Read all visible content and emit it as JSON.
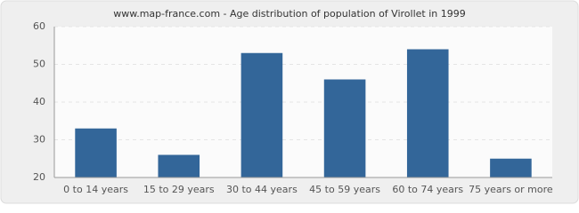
{
  "chart_data": {
    "type": "bar",
    "title": "www.map-france.com - Age distribution of population of Virollet in 1999",
    "categories": [
      "0 to 14 years",
      "15 to 29 years",
      "30 to 44 years",
      "45 to 59 years",
      "60 to 74 years",
      "75 years or more"
    ],
    "values": [
      33,
      26,
      53,
      46,
      54,
      25
    ],
    "color": "#336699",
    "ylim": [
      20,
      60
    ],
    "yticks": [
      20,
      30,
      40,
      50,
      60
    ],
    "grid": true
  }
}
